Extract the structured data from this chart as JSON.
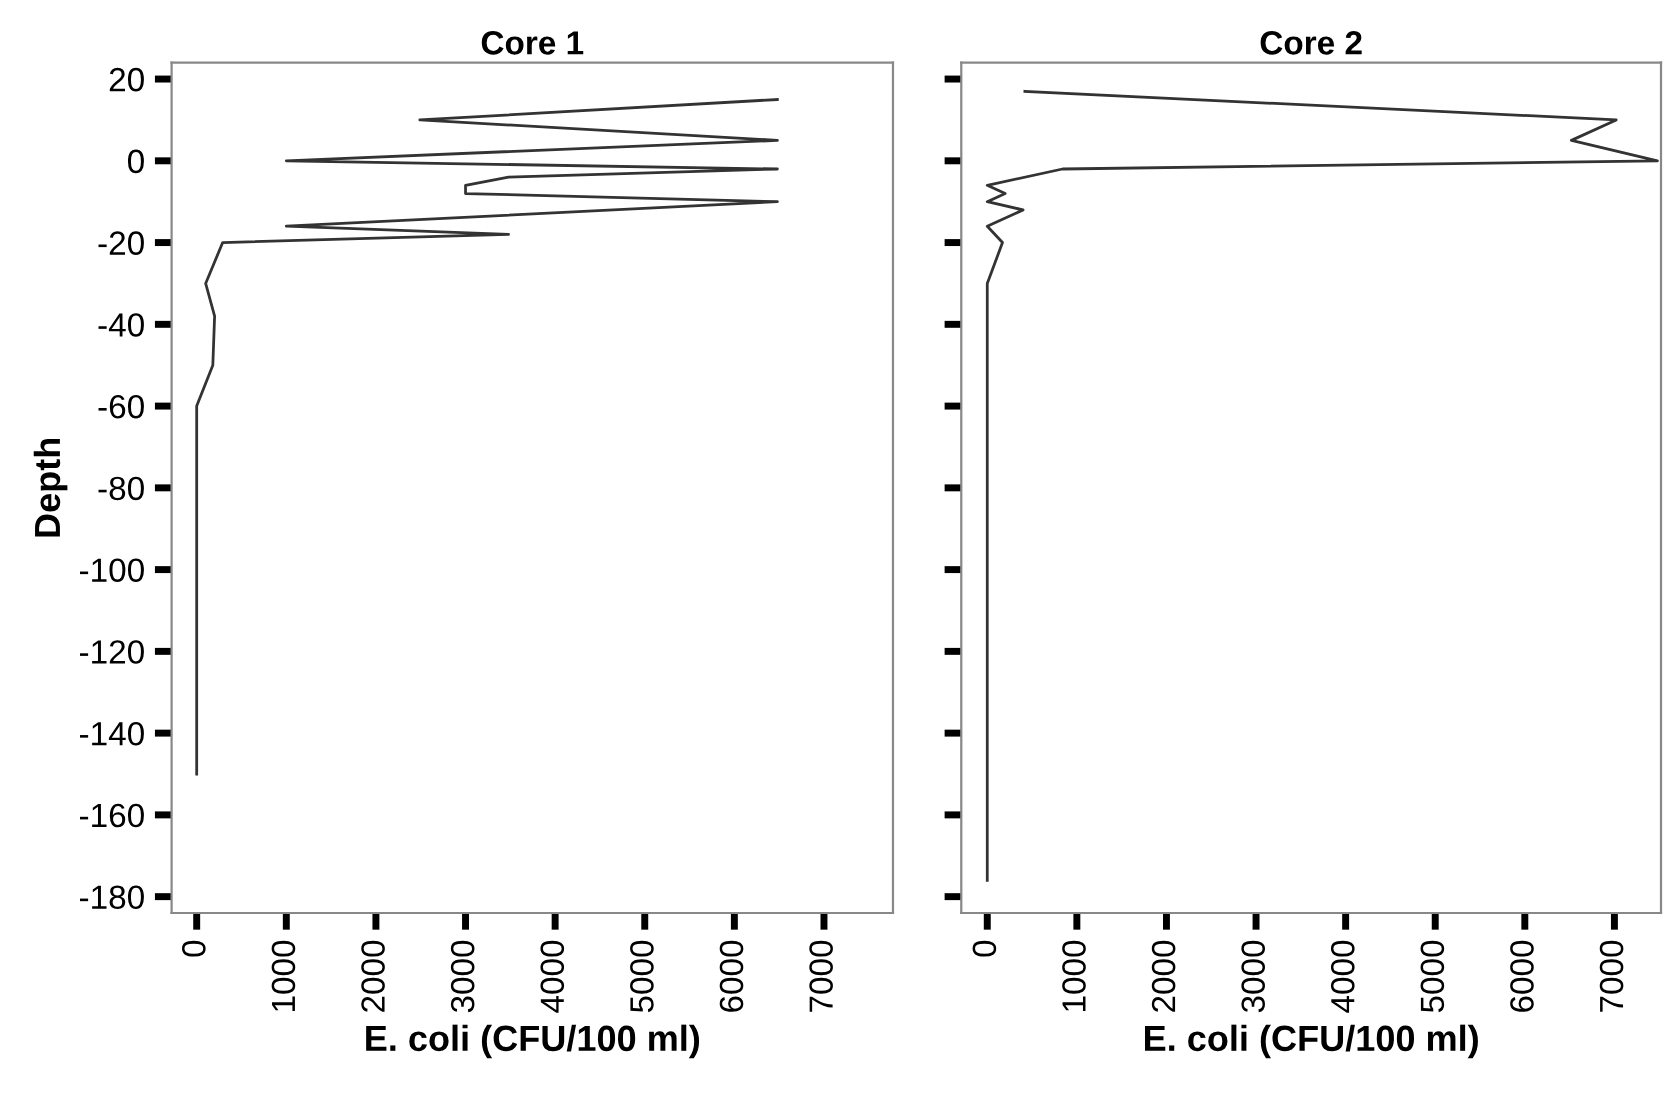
{
  "chart_data": [
    {
      "type": "line",
      "title": "Core 1",
      "xlabel": "E. coli (CFU/100 ml)",
      "ylabel": "Depth",
      "series": [
        {
          "color": "#333333",
          "x": [
            6480,
            2490,
            6480,
            1000,
            6480,
            3480,
            3000,
            3000,
            6480,
            1000,
            3480,
            290,
            100,
            200,
            180,
            0,
            0
          ],
          "values": [
            15,
            10,
            5,
            0,
            -2,
            -4,
            -6,
            -8,
            -10,
            -16,
            -18,
            -20,
            -30,
            -38,
            -50,
            -60,
            -150
          ]
        }
      ],
      "xlim": [
        -280,
        7770
      ],
      "xticks": [
        0,
        1000,
        2000,
        3000,
        4000,
        5000,
        6000,
        7000
      ],
      "ylim": [
        -184,
        24
      ],
      "yticks": [
        20,
        0,
        -20,
        -40,
        -60,
        -80,
        -100,
        -120,
        -140,
        -160,
        -180
      ],
      "grid": false,
      "legend": false
    },
    {
      "type": "line",
      "title": "Core 2",
      "xlabel": "E. coli (CFU/100 ml)",
      "series": [
        {
          "color": "#333333",
          "x": [
            420,
            7020,
            6520,
            7480,
            840,
            0,
            200,
            0,
            400,
            0,
            170,
            0,
            0
          ],
          "values": [
            17,
            10,
            5,
            0,
            -2,
            -6,
            -8,
            -10,
            -12,
            -16,
            -20,
            -30,
            -176
          ]
        }
      ],
      "xlim": [
        -290,
        7520
      ],
      "xticks": [
        0,
        1000,
        2000,
        3000,
        4000,
        5000,
        6000,
        7000
      ],
      "ylim": [
        -184,
        24
      ],
      "yticks": [
        20,
        0,
        -20,
        -40,
        -60,
        -80,
        -100,
        -120,
        -140,
        -160,
        -180
      ],
      "tick_labels": "x",
      "grid": false,
      "legend": false
    }
  ]
}
